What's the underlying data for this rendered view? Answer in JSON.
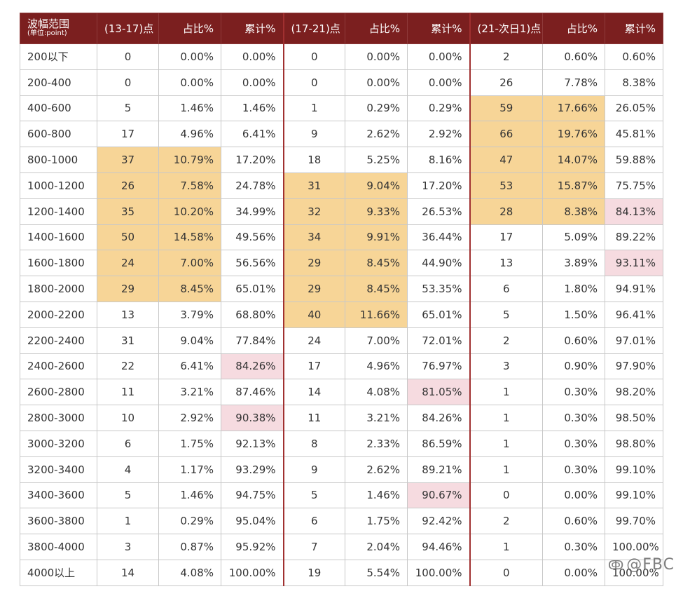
{
  "header": {
    "range": "波幅范围",
    "range_unit": "(单位:point)",
    "g1_count": "(13-17)点",
    "g2_count": "(17-21)点",
    "g3_count": "(21-次日1)点",
    "pct": "占比%",
    "cum": "累计%"
  },
  "rows": [
    [
      "200以下",
      "0",
      "0.00%",
      "0.00%",
      "0",
      "0.00%",
      "0.00%",
      "2",
      "0.60%",
      "0.60%"
    ],
    [
      "200-400",
      "0",
      "0.00%",
      "0.00%",
      "0",
      "0.00%",
      "0.00%",
      "26",
      "7.78%",
      "8.38%"
    ],
    [
      "400-600",
      "5",
      "1.46%",
      "1.46%",
      "1",
      "0.29%",
      "0.29%",
      "59",
      "17.66%",
      "26.05%"
    ],
    [
      "600-800",
      "17",
      "4.96%",
      "6.41%",
      "9",
      "2.62%",
      "2.92%",
      "66",
      "19.76%",
      "45.81%"
    ],
    [
      "800-1000",
      "37",
      "10.79%",
      "17.20%",
      "18",
      "5.25%",
      "8.16%",
      "47",
      "14.07%",
      "59.88%"
    ],
    [
      "1000-1200",
      "26",
      "7.58%",
      "24.78%",
      "31",
      "9.04%",
      "17.20%",
      "53",
      "15.87%",
      "75.75%"
    ],
    [
      "1200-1400",
      "35",
      "10.20%",
      "34.99%",
      "32",
      "9.33%",
      "26.53%",
      "28",
      "8.38%",
      "84.13%"
    ],
    [
      "1400-1600",
      "50",
      "14.58%",
      "49.56%",
      "34",
      "9.91%",
      "36.44%",
      "17",
      "5.09%",
      "89.22%"
    ],
    [
      "1600-1800",
      "24",
      "7.00%",
      "56.56%",
      "29",
      "8.45%",
      "44.90%",
      "13",
      "3.89%",
      "93.11%"
    ],
    [
      "1800-2000",
      "29",
      "8.45%",
      "65.01%",
      "29",
      "8.45%",
      "53.35%",
      "6",
      "1.80%",
      "94.91%"
    ],
    [
      "2000-2200",
      "13",
      "3.79%",
      "68.80%",
      "40",
      "11.66%",
      "65.01%",
      "5",
      "1.50%",
      "96.41%"
    ],
    [
      "2200-2400",
      "31",
      "9.04%",
      "77.84%",
      "24",
      "7.00%",
      "72.01%",
      "2",
      "0.60%",
      "97.01%"
    ],
    [
      "2400-2600",
      "22",
      "6.41%",
      "84.26%",
      "17",
      "4.96%",
      "76.97%",
      "3",
      "0.90%",
      "97.90%"
    ],
    [
      "2600-2800",
      "11",
      "3.21%",
      "87.46%",
      "14",
      "4.08%",
      "81.05%",
      "1",
      "0.30%",
      "98.20%"
    ],
    [
      "2800-3000",
      "10",
      "2.92%",
      "90.38%",
      "11",
      "3.21%",
      "84.26%",
      "1",
      "0.30%",
      "98.50%"
    ],
    [
      "3000-3200",
      "6",
      "1.75%",
      "92.13%",
      "8",
      "2.33%",
      "86.59%",
      "1",
      "0.30%",
      "98.80%"
    ],
    [
      "3200-3400",
      "4",
      "1.17%",
      "93.29%",
      "9",
      "2.62%",
      "89.21%",
      "1",
      "0.30%",
      "99.10%"
    ],
    [
      "3400-3600",
      "5",
      "1.46%",
      "94.75%",
      "5",
      "1.46%",
      "90.67%",
      "0",
      "0.00%",
      "99.10%"
    ],
    [
      "3600-3800",
      "1",
      "0.29%",
      "95.04%",
      "6",
      "1.75%",
      "92.42%",
      "2",
      "0.60%",
      "99.70%"
    ],
    [
      "3800-4000",
      "3",
      "0.87%",
      "95.92%",
      "7",
      "2.04%",
      "94.46%",
      "1",
      "0.30%",
      "100.00%"
    ],
    [
      "4000以上",
      "14",
      "4.08%",
      "100.00%",
      "19",
      "5.54%",
      "100.00%",
      "0",
      "0.00%",
      "100.00%"
    ]
  ],
  "highlights": {
    "orange": [
      [
        2,
        7
      ],
      [
        2,
        8
      ],
      [
        3,
        7
      ],
      [
        3,
        8
      ],
      [
        4,
        1
      ],
      [
        4,
        2
      ],
      [
        4,
        7
      ],
      [
        4,
        8
      ],
      [
        5,
        1
      ],
      [
        5,
        2
      ],
      [
        5,
        4
      ],
      [
        5,
        5
      ],
      [
        5,
        7
      ],
      [
        5,
        8
      ],
      [
        6,
        1
      ],
      [
        6,
        2
      ],
      [
        6,
        4
      ],
      [
        6,
        5
      ],
      [
        6,
        7
      ],
      [
        6,
        8
      ],
      [
        7,
        1
      ],
      [
        7,
        2
      ],
      [
        7,
        4
      ],
      [
        7,
        5
      ],
      [
        8,
        1
      ],
      [
        8,
        2
      ],
      [
        8,
        4
      ],
      [
        8,
        5
      ],
      [
        9,
        1
      ],
      [
        9,
        2
      ],
      [
        9,
        4
      ],
      [
        9,
        5
      ],
      [
        10,
        4
      ],
      [
        10,
        5
      ]
    ],
    "pink": [
      [
        6,
        9
      ],
      [
        8,
        9
      ],
      [
        12,
        3
      ],
      [
        13,
        6
      ],
      [
        14,
        3
      ],
      [
        17,
        6
      ]
    ]
  },
  "colors": {
    "header_bg": "#7b1f1f",
    "highlight_orange": "#f7d597",
    "highlight_pink": "#f6dbe0"
  },
  "watermark": {
    "icon": "weibo-icon",
    "text": "@FBC"
  }
}
